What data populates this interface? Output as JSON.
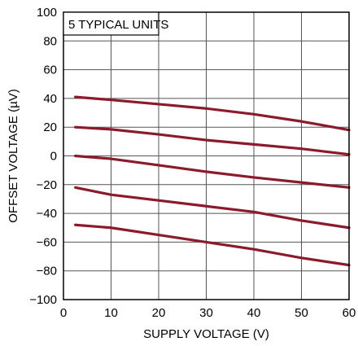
{
  "chart_data": {
    "type": "line",
    "title": "",
    "annotation": "5 TYPICAL UNITS",
    "xlabel": "SUPPLY VOLTAGE (V)",
    "ylabel": "OFFSET VOLTAGE (µV)",
    "xlim": [
      0,
      60
    ],
    "ylim": [
      -100,
      100
    ],
    "xticks": [
      0,
      10,
      20,
      30,
      40,
      50,
      60
    ],
    "yticks": [
      -100,
      -80,
      -60,
      -40,
      -20,
      0,
      20,
      40,
      60,
      80,
      100
    ],
    "xtick_labels": [
      "0",
      "10",
      "20",
      "30",
      "40",
      "50",
      "60"
    ],
    "ytick_labels": [
      "−100",
      "−80",
      "−60",
      "−40",
      "−20",
      "0",
      "20",
      "40",
      "60",
      "80",
      "100"
    ],
    "grid": true,
    "line_color": "#8B1A2B",
    "grid_color": "#555555",
    "series": [
      {
        "x": [
          2.5,
          10,
          20,
          30,
          40,
          50,
          60
        ],
        "values": [
          41,
          39,
          36,
          33,
          29,
          24,
          18
        ]
      },
      {
        "x": [
          2.5,
          10,
          20,
          30,
          40,
          50,
          60
        ],
        "values": [
          20,
          18.5,
          15,
          11,
          8,
          5,
          1
        ]
      },
      {
        "x": [
          2.5,
          10,
          20,
          30,
          40,
          50,
          60
        ],
        "values": [
          0,
          -2,
          -6.5,
          -11,
          -15,
          -18.5,
          -22
        ]
      },
      {
        "x": [
          2.5,
          10,
          20,
          30,
          40,
          50,
          60
        ],
        "values": [
          -22,
          -27,
          -31,
          -35,
          -39,
          -45,
          -50
        ]
      },
      {
        "x": [
          2.5,
          10,
          20,
          30,
          40,
          50,
          60
        ],
        "values": [
          -48,
          -50,
          -55,
          -60,
          -65,
          -71,
          -76
        ]
      }
    ]
  }
}
